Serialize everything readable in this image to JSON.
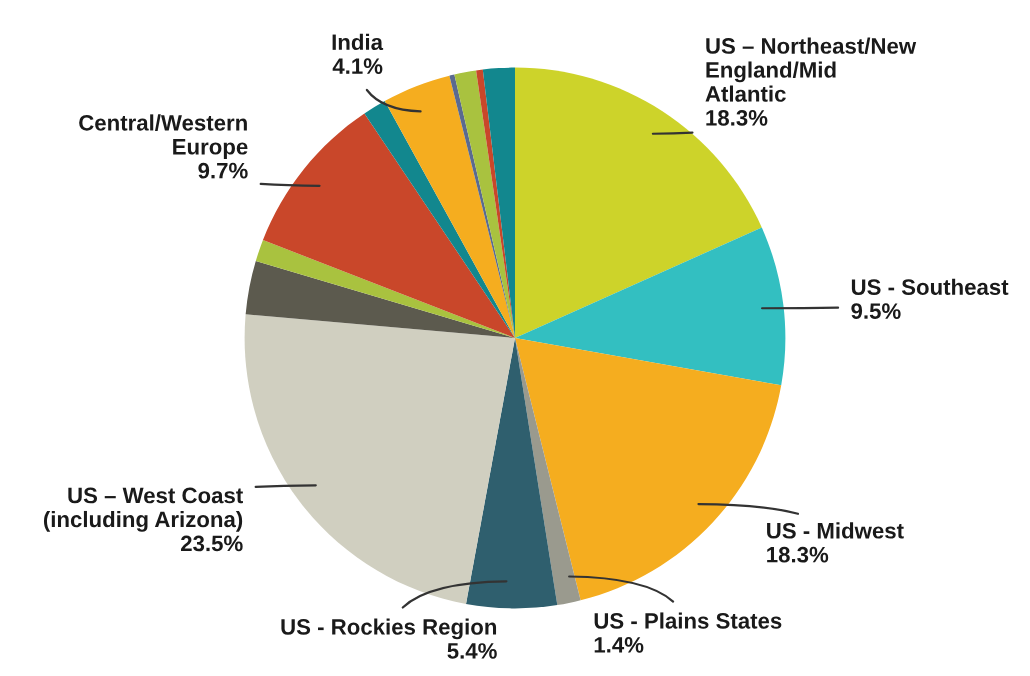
{
  "chart_data": {
    "type": "pie",
    "categories": [
      "US – Northeast/New\nEngland/Mid\nAtlantic",
      "US - Southeast",
      "US - Midwest",
      "US - Plains States",
      "US - Rockies Region",
      "US – West Coast\n(including Arizona)",
      null,
      null,
      "Central/Western\nEurope",
      null,
      "India",
      null,
      null,
      null,
      null
    ],
    "values": [
      18.3,
      9.5,
      18.3,
      1.4,
      5.4,
      23.5,
      3.2,
      1.3,
      9.7,
      1.4,
      4.1,
      0.3,
      1.3,
      0.4,
      1.9
    ],
    "value_labels": [
      "18.3%",
      "9.5%",
      "18.3%",
      "1.4%",
      "5.4%",
      "23.5%",
      null,
      null,
      "9.7%",
      null,
      "4.1%",
      null,
      null,
      null,
      null
    ],
    "colors": [
      "#cdd32a",
      "#33bfc1",
      "#f5ad1f",
      "#9a9a8e",
      "#2f5f6e",
      "#d0cfc0",
      "#5c5a4e",
      "#a9c23f",
      "#c9472a",
      "#12878e",
      "#f5ad1f",
      "#5a6a90",
      "#a9c23f",
      "#c9472a",
      "#12878e"
    ]
  }
}
